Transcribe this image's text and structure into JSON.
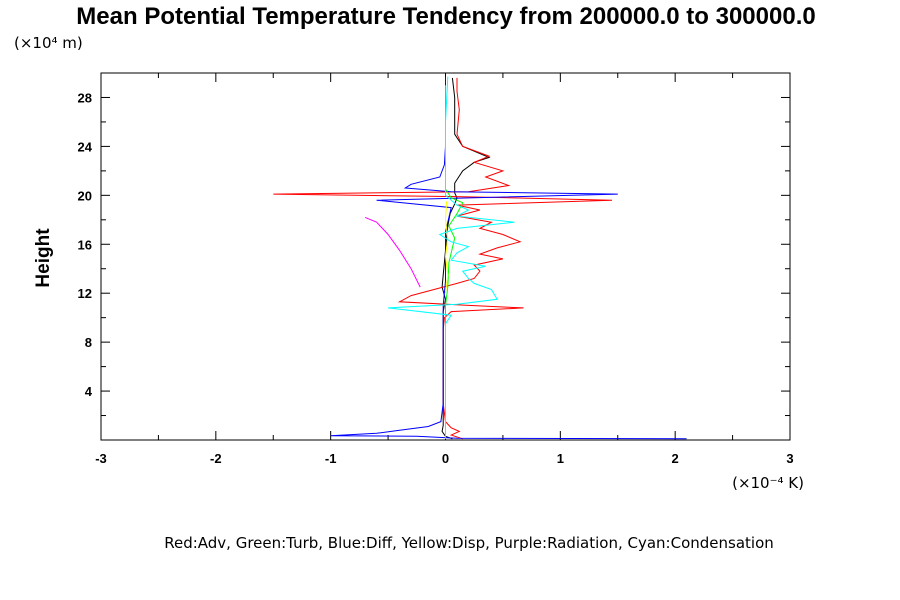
{
  "chart_data": {
    "type": "line",
    "title": "Mean Potential Temperature Tendency from 200000.0 to 300000.0",
    "ylabel": "Height",
    "y_unit": "(×10⁴ m)",
    "x_unit": "(×10⁻⁴ K)",
    "legend_text": "Red:Adv, Green:Turb, Blue:Diff, Yellow:Disp, Purple:Radiation, Cyan:Condensation",
    "xlim": [
      -3,
      3
    ],
    "ylim": [
      0,
      30
    ],
    "x_ticks": [
      "-3",
      "-2",
      "-1",
      "0",
      "1",
      "2",
      "3"
    ],
    "y_ticks": [
      "4",
      "8",
      "12",
      "16",
      "20",
      "24",
      "28"
    ],
    "series": [
      {
        "color": "#000000",
        "points": [
          [
            0.06,
            0.1
          ],
          [
            0.0,
            0.3
          ],
          [
            -0.03,
            0.7
          ],
          [
            -0.02,
            1.2
          ],
          [
            -0.02,
            3
          ],
          [
            -0.02,
            6
          ],
          [
            -0.02,
            9
          ],
          [
            -0.02,
            10.5
          ],
          [
            0.0,
            11.5
          ],
          [
            -0.03,
            12.5
          ],
          [
            -0.02,
            13.5
          ],
          [
            -0.01,
            14.5
          ],
          [
            0.0,
            15.5
          ],
          [
            0.01,
            16.5
          ],
          [
            0.02,
            17.5
          ],
          [
            0.04,
            18.5
          ],
          [
            0.08,
            19.3
          ],
          [
            0.1,
            19.8
          ],
          [
            0.08,
            20.2
          ],
          [
            0.08,
            21
          ],
          [
            0.15,
            22
          ],
          [
            0.25,
            22.7
          ],
          [
            0.38,
            23.1
          ],
          [
            0.15,
            24
          ],
          [
            0.08,
            25
          ],
          [
            0.08,
            26.5
          ],
          [
            0.08,
            28
          ],
          [
            0.06,
            29.6
          ]
        ]
      },
      {
        "color": "#ff0000",
        "points": [
          [
            0.15,
            0.1
          ],
          [
            0.05,
            0.4
          ],
          [
            0.12,
            0.7
          ],
          [
            0.05,
            1.0
          ],
          [
            0.0,
            1.5
          ],
          [
            -0.02,
            3
          ],
          [
            -0.02,
            6
          ],
          [
            -0.02,
            9
          ],
          [
            -0.01,
            10
          ],
          [
            0.05,
            10.5
          ],
          [
            0.68,
            10.8
          ],
          [
            0.2,
            11.0
          ],
          [
            -0.4,
            11.3
          ],
          [
            -0.3,
            11.8
          ],
          [
            -0.1,
            12.3
          ],
          [
            0.1,
            12.8
          ],
          [
            0.25,
            13.2
          ],
          [
            0.3,
            13.8
          ],
          [
            0.25,
            14.3
          ],
          [
            0.5,
            14.8
          ],
          [
            0.3,
            15.2
          ],
          [
            0.45,
            15.7
          ],
          [
            0.65,
            16.2
          ],
          [
            0.5,
            16.8
          ],
          [
            0.3,
            17.3
          ],
          [
            0.4,
            17.8
          ],
          [
            0.1,
            18.3
          ],
          [
            0.3,
            18.8
          ],
          [
            0.1,
            19.2
          ],
          [
            1.45,
            19.6
          ],
          [
            0.1,
            19.9
          ],
          [
            -1.5,
            20.1
          ],
          [
            0.2,
            20.3
          ],
          [
            0.55,
            20.8
          ],
          [
            0.35,
            21.5
          ],
          [
            0.5,
            22.0
          ],
          [
            0.25,
            22.7
          ],
          [
            0.38,
            23.2
          ],
          [
            0.15,
            24
          ],
          [
            0.1,
            25
          ],
          [
            0.12,
            27
          ],
          [
            0.1,
            28.5
          ],
          [
            0.1,
            29.6
          ]
        ]
      },
      {
        "color": "#0000ff",
        "points": [
          [
            2.1,
            0.1
          ],
          [
            0.1,
            0.15
          ],
          [
            -0.25,
            0.3
          ],
          [
            -1.0,
            0.35
          ],
          [
            -0.6,
            0.55
          ],
          [
            -0.4,
            0.8
          ],
          [
            -0.15,
            1.1
          ],
          [
            -0.04,
            1.5
          ],
          [
            -0.02,
            3
          ],
          [
            -0.02,
            6
          ],
          [
            -0.02,
            9
          ],
          [
            -0.02,
            11
          ],
          [
            0.0,
            13
          ],
          [
            0.0,
            15
          ],
          [
            0.0,
            17
          ],
          [
            0.05,
            19.0
          ],
          [
            -0.6,
            19.6
          ],
          [
            1.5,
            20.1
          ],
          [
            0.05,
            20.3
          ],
          [
            -0.35,
            20.6
          ],
          [
            -0.3,
            20.9
          ],
          [
            -0.05,
            21.5
          ],
          [
            -0.01,
            22.5
          ],
          [
            0.0,
            24
          ],
          [
            0.0,
            27
          ],
          [
            0.0,
            29.7
          ]
        ]
      },
      {
        "color": "#00ff00",
        "points": [
          [
            0.0,
            1.0
          ],
          [
            0.0,
            8
          ],
          [
            0.0,
            11
          ],
          [
            0.02,
            12.5
          ],
          [
            0.03,
            14.5
          ],
          [
            0.08,
            16.5
          ],
          [
            0.03,
            17.5
          ],
          [
            0.1,
            18.5
          ],
          [
            0.15,
            19.4
          ],
          [
            0.05,
            19.8
          ],
          [
            0.0,
            20.5
          ],
          [
            0.0,
            29
          ]
        ]
      },
      {
        "color": "#ffff00",
        "points": [
          [
            0.0,
            12.0
          ],
          [
            0.02,
            13.5
          ],
          [
            0.0,
            15
          ],
          [
            0.02,
            16.5
          ],
          [
            0.0,
            18
          ],
          [
            0.01,
            19.5
          ]
        ]
      },
      {
        "color": "#ff00ff",
        "points": [
          [
            -0.22,
            12.5
          ],
          [
            -0.3,
            14
          ],
          [
            -0.4,
            15.5
          ],
          [
            -0.5,
            16.8
          ],
          [
            -0.6,
            17.8
          ],
          [
            -0.7,
            18.2
          ]
        ]
      },
      {
        "color": "#00ffff",
        "points": [
          [
            0.0,
            0.1
          ],
          [
            0.0,
            3
          ],
          [
            0.0,
            6
          ],
          [
            0.0,
            9.5
          ],
          [
            0.05,
            10.2
          ],
          [
            -0.5,
            10.8
          ],
          [
            0.1,
            11.1
          ],
          [
            0.45,
            11.5
          ],
          [
            0.4,
            12.3
          ],
          [
            0.25,
            12.8
          ],
          [
            0.2,
            13.2
          ],
          [
            0.15,
            13.8
          ],
          [
            0.35,
            14.2
          ],
          [
            0.05,
            14.7
          ],
          [
            0.1,
            15.3
          ],
          [
            0.2,
            15.8
          ],
          [
            0.05,
            16.2
          ],
          [
            -0.05,
            16.8
          ],
          [
            0.1,
            17.3
          ],
          [
            0.6,
            17.8
          ],
          [
            0.1,
            18.3
          ],
          [
            0.2,
            18.8
          ],
          [
            0.1,
            19.2
          ],
          [
            0.0,
            20
          ],
          [
            0.0,
            23
          ],
          [
            0.0,
            26
          ],
          [
            0.02,
            29.7
          ]
        ]
      }
    ]
  }
}
